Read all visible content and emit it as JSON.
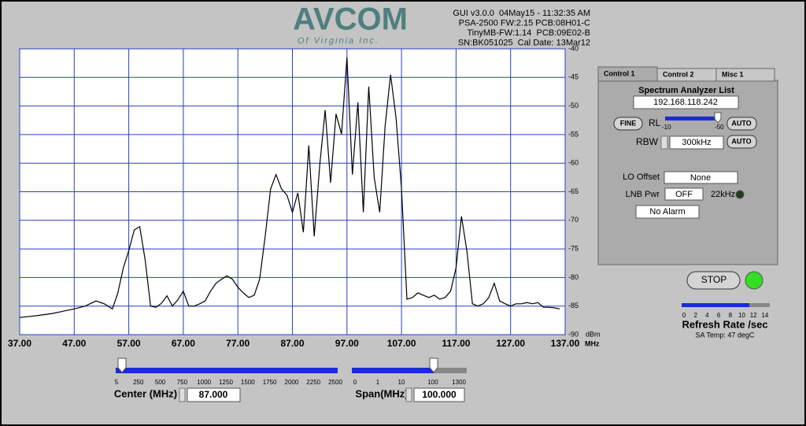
{
  "logo": {
    "brand": "AVCOM",
    "tagline": "Of Virginia Inc."
  },
  "header": {
    "lines": [
      "GUI v3.0.0  04May15 - 11:32:35 AM",
      "PSA-2500 FW:2.15 PCB:08H01-C",
      "TinyMB-FW:1.14  PCB:09E02-B",
      "SN:BK051025  Cal Date: 13Mar12"
    ]
  },
  "chart_data": {
    "type": "line",
    "x": [
      37,
      40,
      43,
      45,
      47,
      49,
      51,
      52.5,
      54,
      55,
      56,
      57,
      58,
      59,
      60,
      61,
      62,
      63,
      64,
      65,
      66,
      67,
      68,
      69,
      70,
      71,
      72,
      73,
      74,
      75,
      76,
      77,
      78,
      79,
      80,
      81,
      82,
      83,
      84,
      85,
      86,
      87,
      88,
      89,
      90,
      91,
      92,
      93,
      94,
      95,
      96,
      97,
      98,
      99,
      100,
      101,
      102,
      103,
      104,
      105,
      106,
      107,
      108,
      109,
      110,
      111,
      112,
      113,
      114,
      115,
      116,
      117,
      118,
      119,
      120,
      121,
      122,
      123,
      124,
      125,
      126,
      127,
      128,
      129,
      130,
      131,
      132,
      133,
      134,
      135,
      136
    ],
    "values": [
      -87,
      -86.7,
      -86.3,
      -85.9,
      -85.5,
      -85,
      -84.1,
      -84.6,
      -85.5,
      -82.7,
      -78.3,
      -75.3,
      -71.7,
      -71.1,
      -76.9,
      -85,
      -85.2,
      -84.5,
      -83.2,
      -85,
      -83.9,
      -82.4,
      -85,
      -85,
      -84.6,
      -84.1,
      -82.4,
      -81,
      -80.3,
      -79.7,
      -80.3,
      -81.7,
      -82.7,
      -83.5,
      -83.1,
      -80.3,
      -72.8,
      -64.5,
      -62,
      -64.5,
      -65.6,
      -68.6,
      -65.2,
      -72.1,
      -56.9,
      -72.8,
      -60.4,
      -50.7,
      -63.4,
      -51.4,
      -54.9,
      -41.5,
      -62,
      -49.4,
      -68.6,
      -46.6,
      -62.5,
      -68.6,
      -53.5,
      -44.5,
      -52.1,
      -64.5,
      -83.8,
      -83.5,
      -82.7,
      -83.1,
      -83.5,
      -83.1,
      -83.8,
      -83.5,
      -82.4,
      -78.3,
      -69.3,
      -75.5,
      -84.6,
      -85,
      -84.6,
      -83.5,
      -81,
      -84.1,
      -84.6,
      -85,
      -84.6,
      -84.6,
      -84.4,
      -84.6,
      -84.4,
      -85.2,
      -85.2,
      -85.3,
      -85.5
    ],
    "color": "#000000",
    "grid": true,
    "grid_color": "#2a3fc0",
    "xlim": [
      37,
      137
    ],
    "ylim": [
      -90,
      -40
    ],
    "xticks": [
      {
        "value": 37,
        "label": "37.00"
      },
      {
        "value": 47,
        "label": "47.00"
      },
      {
        "value": 57,
        "label": "57.00"
      },
      {
        "value": 67,
        "label": "67.00"
      },
      {
        "value": 77,
        "label": "77.00"
      },
      {
        "value": 87,
        "label": "87.00"
      },
      {
        "value": 97,
        "label": "97.00"
      },
      {
        "value": 107,
        "label": "107.00"
      },
      {
        "value": 117,
        "label": "117.00"
      },
      {
        "value": 127,
        "label": "127.00"
      },
      {
        "value": 137,
        "label": "137.00"
      }
    ],
    "yticks": [
      -40,
      -45,
      -50,
      -55,
      -60,
      -65,
      -70,
      -75,
      -80,
      -85,
      -90
    ],
    "x_unit": "MHz",
    "y_unit": "dBm"
  },
  "control_panel": {
    "tabs": [
      "Control 1",
      "Control 2",
      "Misc 1"
    ],
    "list_label": "Spectrum Analyzer List",
    "ip": "192.168.118.242",
    "fine": "FINE",
    "rl": "RL",
    "rl_min": "-10",
    "rl_max": "-50",
    "auto_rl": "AUTO",
    "rbw": "RBW",
    "rbw_value": "300kHz",
    "auto_rbw": "AUTO",
    "lo_offset": "LO Offset",
    "lo_value": "None",
    "lnb_pwr": "LNB Pwr",
    "lnb_value": "OFF",
    "khz22": "22kHz",
    "alarm": "No Alarm"
  },
  "run": {
    "stop": "STOP",
    "refresh_ticks": [
      "0",
      "2",
      "4",
      "6",
      "8",
      "10",
      "12",
      "14"
    ],
    "refresh_label": "Refresh Rate /sec",
    "temp": "SA Temp: 47 degC"
  },
  "bottom": {
    "center_ticks": [
      "5",
      "250",
      "500",
      "750",
      "1000",
      "1250",
      "1500",
      "1750",
      "2000",
      "2250",
      "2500"
    ],
    "center_label": "Center (MHz)",
    "center_value": "87.000",
    "span_ticks": [
      "0",
      "1",
      "10",
      "100",
      "1300"
    ],
    "span_label": "Span(MHz)",
    "span_value": "100.000"
  }
}
